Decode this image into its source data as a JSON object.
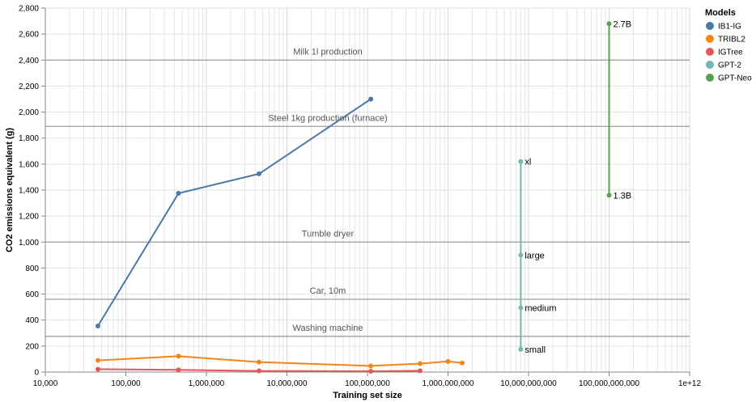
{
  "chart_data": {
    "type": "line",
    "xlabel": "Training set size",
    "ylabel": "CO2 emissions equivalent (g)",
    "x_scale": "log",
    "xlim": [
      10000,
      1000000000000
    ],
    "ylim": [
      0,
      2800
    ],
    "grid": true,
    "x_ticks": [
      {
        "value": 10000,
        "label": "10,000"
      },
      {
        "value": 100000,
        "label": "100,000"
      },
      {
        "value": 1000000,
        "label": "1,000,000"
      },
      {
        "value": 10000000,
        "label": "10,000,000"
      },
      {
        "value": 100000000,
        "label": "100,000,000"
      },
      {
        "value": 1000000000,
        "label": "1,000,000,000"
      },
      {
        "value": 10000000000,
        "label": "10,000,000,000"
      },
      {
        "value": 100000000000,
        "label": "100,000,000,000"
      },
      {
        "value": 1000000000000,
        "label": "1e+12"
      }
    ],
    "y_ticks": [
      {
        "value": 0,
        "label": "0"
      },
      {
        "value": 200,
        "label": "200"
      },
      {
        "value": 400,
        "label": "400"
      },
      {
        "value": 600,
        "label": "600"
      },
      {
        "value": 800,
        "label": "800"
      },
      {
        "value": 1000,
        "label": "1,000"
      },
      {
        "value": 1200,
        "label": "1,200"
      },
      {
        "value": 1400,
        "label": "1,400"
      },
      {
        "value": 1600,
        "label": "1,600"
      },
      {
        "value": 1800,
        "label": "1,800"
      },
      {
        "value": 2000,
        "label": "2,000"
      },
      {
        "value": 2200,
        "label": "2,200"
      },
      {
        "value": 2400,
        "label": "2,400"
      },
      {
        "value": 2600,
        "label": "2,600"
      },
      {
        "value": 2800,
        "label": "2,800"
      }
    ],
    "reference_lines": [
      {
        "label": "Milk 1l production",
        "value": 2400
      },
      {
        "label": "Steel 1kg production (furnace)",
        "value": 1890
      },
      {
        "label": "Tumble dryer",
        "value": 1000
      },
      {
        "label": "Car, 10m",
        "value": 560
      },
      {
        "label": "Washing machine",
        "value": 275
      }
    ],
    "legend": {
      "title": "Models",
      "placement": "right"
    },
    "series": [
      {
        "name": "IB1-IG",
        "color": "#4c78a8",
        "points": [
          {
            "x": 45000,
            "y": 355
          },
          {
            "x": 450000,
            "y": 1375
          },
          {
            "x": 4500000,
            "y": 1525
          },
          {
            "x": 110000000,
            "y": 2100
          }
        ]
      },
      {
        "name": "TRIBL2",
        "color": "#f58518",
        "points": [
          {
            "x": 45000,
            "y": 90
          },
          {
            "x": 450000,
            "y": 122
          },
          {
            "x": 4500000,
            "y": 77
          },
          {
            "x": 110000000,
            "y": 47
          },
          {
            "x": 450000000,
            "y": 65
          },
          {
            "x": 1000000000,
            "y": 82
          },
          {
            "x": 1500000000,
            "y": 70
          }
        ]
      },
      {
        "name": "IGTree",
        "color": "#e45756",
        "points": [
          {
            "x": 45000,
            "y": 22
          },
          {
            "x": 450000,
            "y": 17
          },
          {
            "x": 4500000,
            "y": 9
          },
          {
            "x": 110000000,
            "y": 6
          },
          {
            "x": 450000000,
            "y": 10
          }
        ]
      },
      {
        "name": "GPT-2",
        "color": "#72b7b2",
        "points": [
          {
            "x": 8000000000,
            "y": 175,
            "label": "small"
          },
          {
            "x": 8000000000,
            "y": 495,
            "label": "medium"
          },
          {
            "x": 8000000000,
            "y": 900,
            "label": "large"
          },
          {
            "x": 8000000000,
            "y": 1620,
            "label": "xl"
          }
        ]
      },
      {
        "name": "GPT-Neo",
        "color": "#54a24b",
        "points": [
          {
            "x": 100000000000,
            "y": 1360,
            "label": "1.3B"
          },
          {
            "x": 100000000000,
            "y": 2680,
            "label": "2.7B"
          }
        ]
      }
    ]
  }
}
